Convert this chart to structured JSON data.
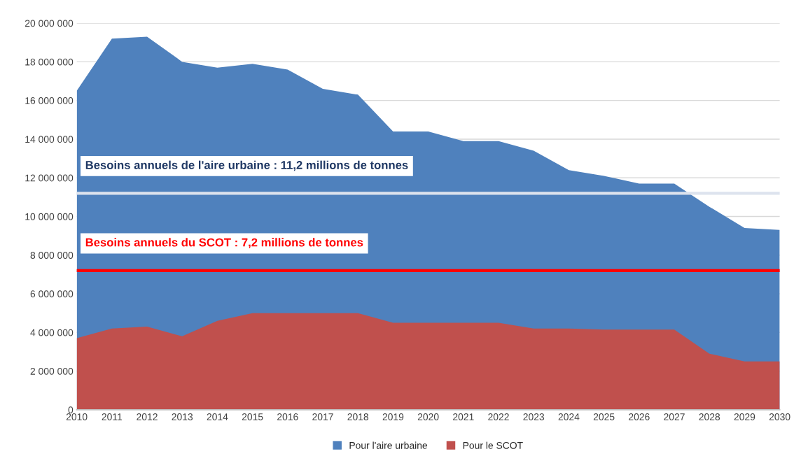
{
  "chart_data": {
    "type": "area",
    "x": [
      2010,
      2011,
      2012,
      2013,
      2014,
      2015,
      2016,
      2017,
      2018,
      2019,
      2020,
      2021,
      2022,
      2023,
      2024,
      2025,
      2026,
      2027,
      2028,
      2029,
      2030
    ],
    "series": [
      {
        "name": "Pour l'aire urbaine",
        "color": "#4f81bd",
        "values": [
          16500000,
          19200000,
          19300000,
          18000000,
          17700000,
          17900000,
          17600000,
          16600000,
          16300000,
          14400000,
          14400000,
          13900000,
          13900000,
          13400000,
          12400000,
          12100000,
          11700000,
          11700000,
          10500000,
          9400000,
          9300000
        ]
      },
      {
        "name": "Pour le SCOT",
        "color": "#c0504d",
        "values": [
          3700000,
          4200000,
          4300000,
          3800000,
          4600000,
          5000000,
          5000000,
          5000000,
          5000000,
          4500000,
          4500000,
          4500000,
          4500000,
          4200000,
          4200000,
          4150000,
          4150000,
          4150000,
          2900000,
          2500000,
          2500000
        ]
      }
    ],
    "xlim": [
      2010,
      2030
    ],
    "xticks": [
      2010,
      2011,
      2012,
      2013,
      2014,
      2015,
      2016,
      2017,
      2018,
      2019,
      2020,
      2021,
      2022,
      2023,
      2024,
      2025,
      2026,
      2027,
      2028,
      2029,
      2030
    ],
    "ylim": [
      0,
      20000000
    ],
    "yticks": [
      {
        "value": 0,
        "label": "0"
      },
      {
        "value": 2000000,
        "label": "2 000 000"
      },
      {
        "value": 4000000,
        "label": "4 000 000"
      },
      {
        "value": 6000000,
        "label": "6 000 000"
      },
      {
        "value": 8000000,
        "label": "8 000 000"
      },
      {
        "value": 10000000,
        "label": "10 000 000"
      },
      {
        "value": 12000000,
        "label": "12 000 000"
      },
      {
        "value": 14000000,
        "label": "14 000 000"
      },
      {
        "value": 16000000,
        "label": "16 000 000"
      },
      {
        "value": 18000000,
        "label": "18 000 000"
      },
      {
        "value": 20000000,
        "label": "20 000 000"
      }
    ],
    "ref_lines": [
      {
        "axis": "y",
        "value": 11200000,
        "label": "Besoins annuels de l'aire urbaine : 11,2 millions de tonnes",
        "color": "#dde3ee"
      },
      {
        "axis": "y",
        "value": 7200000,
        "label": "Besoins annuels du SCOT : 7,2 millions de tonnes",
        "color": "#ff0000"
      }
    ],
    "grid": "y",
    "legend": "bottom"
  }
}
